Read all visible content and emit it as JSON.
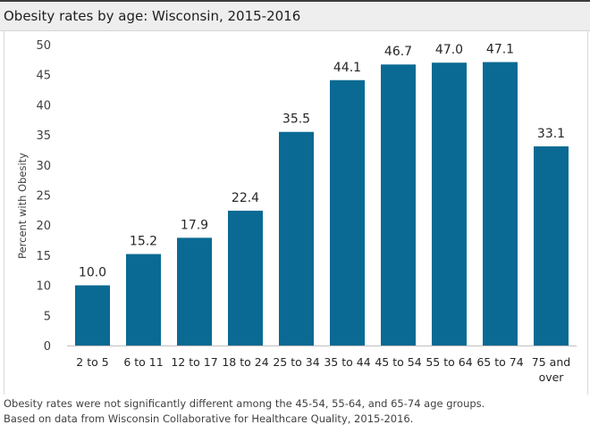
{
  "header": {
    "title": "Obesity rates by age: Wisconsin, 2015-2016"
  },
  "chart_data": {
    "type": "bar",
    "title": "Obesity rates by age: Wisconsin, 2015-2016",
    "xlabel": "",
    "ylabel": "Percent with Obesity",
    "ylim": [
      0,
      50
    ],
    "yticks": [
      0,
      5,
      10,
      15,
      20,
      25,
      30,
      35,
      40,
      45,
      50
    ],
    "grid": false,
    "categories": [
      [
        "2 to 5"
      ],
      [
        "6 to 11"
      ],
      [
        "12 to 17"
      ],
      [
        "18 to 24"
      ],
      [
        "25 to 34"
      ],
      [
        "35 to 44"
      ],
      [
        "45 to 54"
      ],
      [
        "55 to 64"
      ],
      [
        "65 to 74"
      ],
      [
        "75 and",
        "over"
      ]
    ],
    "values": [
      10.0,
      15.2,
      17.9,
      22.4,
      35.5,
      44.1,
      46.7,
      47.0,
      47.1,
      33.1
    ],
    "value_labels": [
      "10.0",
      "15.2",
      "17.9",
      "22.4",
      "35.5",
      "44.1",
      "46.7",
      "47.0",
      "47.1",
      "33.1"
    ],
    "bar_color": "#0a6a93"
  },
  "footnotes": [
    "Obesity rates were not significantly different among the 45-54, 55-64, and 65-74 age groups.",
    "Based on data from Wisconsin Collaborative for Healthcare Quality, 2015-2016."
  ]
}
